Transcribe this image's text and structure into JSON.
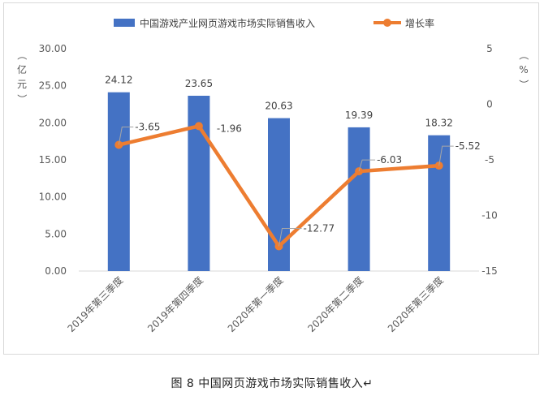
{
  "chart_data": {
    "type": "bar",
    "categories": [
      "2019年第三季度",
      "2019年第四季度",
      "2020年第一季度",
      "2020年第二季度",
      "2020年第三季度"
    ],
    "series": [
      {
        "name": "中国游戏产业网页游戏市场实际销售收入",
        "type": "bar",
        "axis": "left",
        "values": [
          24.12,
          23.65,
          20.63,
          19.39,
          18.32
        ],
        "labels": [
          "24.12",
          "23.65",
          "20.63",
          "19.39",
          "18.32"
        ]
      },
      {
        "name": "增长率",
        "type": "line",
        "axis": "right",
        "values": [
          -3.65,
          -1.96,
          -12.77,
          -6.03,
          -5.52
        ],
        "labels": [
          "-3.65",
          "-1.96",
          "-12.77",
          "-6.03",
          "-5.52"
        ]
      }
    ],
    "y_left": {
      "label": "（亿元）",
      "ylim": [
        0,
        30
      ],
      "ticks": [
        "0.00",
        "5.00",
        "10.00",
        "15.00",
        "20.00",
        "25.00",
        "30.00"
      ]
    },
    "y_right": {
      "label": "（%）",
      "ylim": [
        -15,
        5
      ],
      "ticks": [
        "-15",
        "-10",
        "-5",
        "0",
        "5"
      ]
    },
    "legend_position": "top",
    "grid": false,
    "colors": {
      "bar": "#4472c4",
      "line": "#ed7d31"
    }
  },
  "caption": "图 8  中国网页游戏市场实际销售收入↵"
}
